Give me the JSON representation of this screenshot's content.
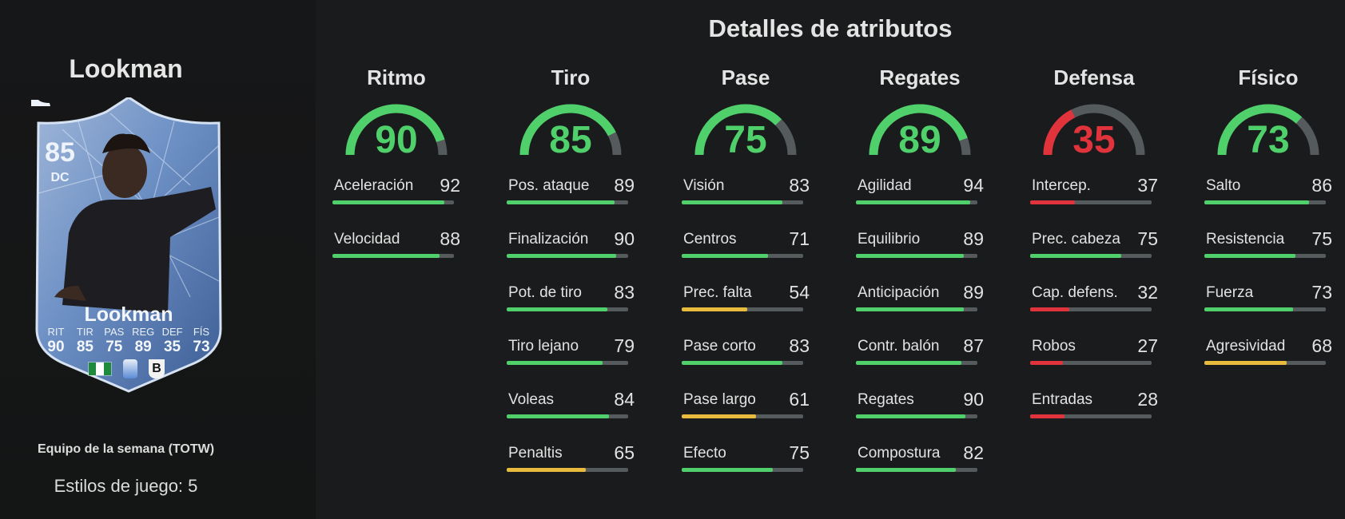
{
  "player": {
    "name": "Lookman",
    "card": {
      "rating": "85",
      "position": "DC",
      "name": "Lookman",
      "stats": [
        {
          "label": "RIT",
          "value": "90"
        },
        {
          "label": "TIR",
          "value": "85"
        },
        {
          "label": "PAS",
          "value": "75"
        },
        {
          "label": "REG",
          "value": "89"
        },
        {
          "label": "DEF",
          "value": "35"
        },
        {
          "label": "FÍS",
          "value": "73"
        }
      ],
      "club_initial": "B"
    },
    "edition": "Equipo de la semana (TOTW)",
    "playstyles": "Estilos de juego: 5"
  },
  "details": {
    "title": "Detalles de atributos",
    "columns": [
      {
        "title": "Ritmo",
        "value": "90",
        "color": "#4fd06b",
        "stats": [
          {
            "name": "Aceleración",
            "value": "92",
            "color": "#4fd06b"
          },
          {
            "name": "Velocidad",
            "value": "88",
            "color": "#4fd06b"
          }
        ]
      },
      {
        "title": "Tiro",
        "value": "85",
        "color": "#4fd06b",
        "stats": [
          {
            "name": "Pos. ataque",
            "value": "89",
            "color": "#4fd06b"
          },
          {
            "name": "Finalización",
            "value": "90",
            "color": "#4fd06b"
          },
          {
            "name": "Pot. de tiro",
            "value": "83",
            "color": "#4fd06b"
          },
          {
            "name": "Tiro lejano",
            "value": "79",
            "color": "#4fd06b"
          },
          {
            "name": "Voleas",
            "value": "84",
            "color": "#4fd06b"
          },
          {
            "name": "Penaltis",
            "value": "65",
            "color": "#e8bb3c"
          }
        ]
      },
      {
        "title": "Pase",
        "value": "75",
        "color": "#4fd06b",
        "stats": [
          {
            "name": "Visión",
            "value": "83",
            "color": "#4fd06b"
          },
          {
            "name": "Centros",
            "value": "71",
            "color": "#4fd06b"
          },
          {
            "name": "Prec. falta",
            "value": "54",
            "color": "#e8bb3c"
          },
          {
            "name": "Pase corto",
            "value": "83",
            "color": "#4fd06b"
          },
          {
            "name": "Pase largo",
            "value": "61",
            "color": "#e8bb3c"
          },
          {
            "name": "Efecto",
            "value": "75",
            "color": "#4fd06b"
          }
        ]
      },
      {
        "title": "Regates",
        "value": "89",
        "color": "#4fd06b",
        "stats": [
          {
            "name": "Agilidad",
            "value": "94",
            "color": "#4fd06b"
          },
          {
            "name": "Equilibrio",
            "value": "89",
            "color": "#4fd06b"
          },
          {
            "name": "Anticipación",
            "value": "89",
            "color": "#4fd06b"
          },
          {
            "name": "Contr. balón",
            "value": "87",
            "color": "#4fd06b"
          },
          {
            "name": "Regates",
            "value": "90",
            "color": "#4fd06b"
          },
          {
            "name": "Compostura",
            "value": "82",
            "color": "#4fd06b"
          }
        ]
      },
      {
        "title": "Defensa",
        "value": "35",
        "color": "#e0333c",
        "stats": [
          {
            "name": "Intercep.",
            "value": "37",
            "color": "#e0333c"
          },
          {
            "name": "Prec. cabeza",
            "value": "75",
            "color": "#4fd06b"
          },
          {
            "name": "Cap. defens.",
            "value": "32",
            "color": "#e0333c"
          },
          {
            "name": "Robos",
            "value": "27",
            "color": "#e0333c"
          },
          {
            "name": "Entradas",
            "value": "28",
            "color": "#e0333c"
          }
        ]
      },
      {
        "title": "Físico",
        "value": "73",
        "color": "#4fd06b",
        "stats": [
          {
            "name": "Salto",
            "value": "86",
            "color": "#4fd06b"
          },
          {
            "name": "Resistencia",
            "value": "75",
            "color": "#4fd06b"
          },
          {
            "name": "Fuerza",
            "value": "73",
            "color": "#4fd06b"
          },
          {
            "name": "Agresividad",
            "value": "68",
            "color": "#e8bb3c"
          }
        ]
      }
    ]
  },
  "colors": {
    "background": "#1a1b1c",
    "left_panel": "#151616",
    "bar_track": "#555a5c",
    "card_blue": "#5b7fb6"
  }
}
